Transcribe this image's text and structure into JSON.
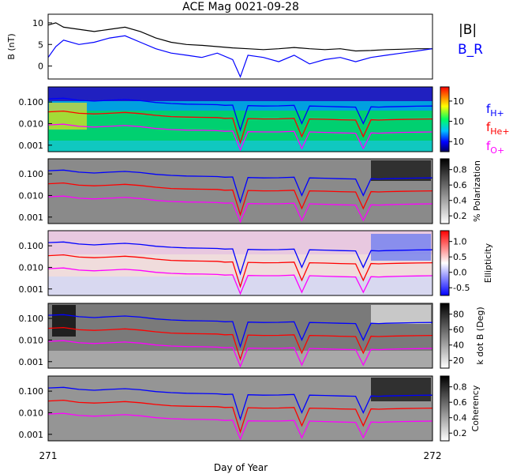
{
  "figure": {
    "title": "ACE Mag 0021-09-28",
    "xlabel": "Day of Year",
    "x_ticks": [
      "271",
      "272"
    ]
  },
  "chart_data": [
    {
      "type": "line",
      "panel": "field",
      "ylabel": "B (nT)",
      "ylim": [
        -3,
        12
      ],
      "y_ticks": [
        "10",
        "5",
        "0"
      ],
      "x_range": [
        271.0,
        272.0
      ],
      "series": [
        {
          "name": "|B|",
          "color": "#000000",
          "x": [
            271.0,
            271.02,
            271.04,
            271.08,
            271.12,
            271.16,
            271.2,
            271.24,
            271.28,
            271.32,
            271.36,
            271.4,
            271.44,
            271.48,
            271.52,
            271.56,
            271.6,
            271.64,
            271.68,
            271.72,
            271.76,
            271.8,
            271.84,
            271.88,
            271.92,
            271.96,
            272.0
          ],
          "values": [
            9.5,
            10.0,
            9.0,
            8.5,
            8.0,
            8.5,
            9.0,
            8.0,
            6.5,
            5.5,
            5.0,
            4.8,
            4.5,
            4.2,
            4.0,
            3.8,
            4.0,
            4.3,
            4.0,
            3.8,
            4.0,
            3.5,
            3.6,
            3.8,
            3.9,
            4.0,
            4.0
          ]
        },
        {
          "name": "B_R",
          "color": "#0000ff",
          "x": [
            271.0,
            271.02,
            271.04,
            271.08,
            271.12,
            271.16,
            271.2,
            271.24,
            271.28,
            271.32,
            271.36,
            271.4,
            271.44,
            271.48,
            271.5,
            271.52,
            271.56,
            271.6,
            271.64,
            271.68,
            271.72,
            271.76,
            271.8,
            271.84,
            271.88,
            271.92,
            271.96,
            272.0
          ],
          "values": [
            2.0,
            4.5,
            6.0,
            5.0,
            5.5,
            6.5,
            7.0,
            5.5,
            4.0,
            3.0,
            2.5,
            2.0,
            3.0,
            1.5,
            -2.5,
            2.5,
            2.0,
            1.0,
            2.5,
            0.5,
            1.5,
            2.0,
            1.0,
            2.0,
            2.5,
            3.0,
            3.5,
            4.0
          ]
        }
      ]
    },
    {
      "type": "heatmap",
      "panel": "power",
      "yscale": "log",
      "ylim": [
        0.0005,
        0.5
      ],
      "y_ticks": [
        "0.100",
        "0.010",
        "0.001"
      ],
      "colorbar_ticks": [
        "10",
        "10",
        "10"
      ],
      "overlay_series": [
        {
          "name": "f_H+",
          "color": "#0000ff"
        },
        {
          "name": "f_He+",
          "color": "#ff0000"
        },
        {
          "name": "f_O+",
          "color": "#ff00ff"
        }
      ]
    },
    {
      "type": "heatmap",
      "panel": "polarization",
      "yscale": "log",
      "ylim": [
        0.0005,
        0.5
      ],
      "y_ticks": [
        "0.100",
        "0.010",
        "0.001"
      ],
      "colorbar_label": "% Polarization",
      "colorbar_ticks": [
        "0.8",
        "0.6",
        "0.4",
        "0.2"
      ]
    },
    {
      "type": "heatmap",
      "panel": "ellipticity",
      "yscale": "log",
      "ylim": [
        0.0005,
        0.5
      ],
      "y_ticks": [
        "0.100",
        "0.010",
        "0.001"
      ],
      "colorbar_label": "Ellipticity",
      "colorbar_ticks": [
        "1.0",
        "0.5",
        "0.0",
        "-0.5"
      ]
    },
    {
      "type": "heatmap",
      "panel": "kdotb",
      "yscale": "log",
      "ylim": [
        0.0005,
        0.5
      ],
      "y_ticks": [
        "0.100",
        "0.010",
        "0.001"
      ],
      "colorbar_label": "k dot B (Deg)",
      "colorbar_ticks": [
        "80",
        "60",
        "40",
        "20"
      ]
    },
    {
      "type": "heatmap",
      "panel": "coherency",
      "yscale": "log",
      "ylim": [
        0.0005,
        0.5
      ],
      "y_ticks": [
        "0.100",
        "0.010",
        "0.001"
      ],
      "colorbar_label": "Coherency",
      "colorbar_ticks": [
        "0.8",
        "0.6",
        "0.4",
        "0.2"
      ]
    }
  ],
  "gyrofrequency": {
    "x": [
      271.0,
      271.04,
      271.08,
      271.12,
      271.16,
      271.2,
      271.24,
      271.28,
      271.32,
      271.36,
      271.4,
      271.44,
      271.46,
      271.48,
      271.5,
      271.52,
      271.56,
      271.6,
      271.64,
      271.66,
      271.68,
      271.72,
      271.76,
      271.8,
      271.82,
      271.84,
      271.86,
      271.88,
      271.92,
      271.96,
      272.0
    ],
    "f_H+": [
      0.14,
      0.15,
      0.12,
      0.11,
      0.12,
      0.13,
      0.115,
      0.095,
      0.085,
      0.08,
      0.078,
      0.075,
      0.07,
      0.072,
      0.005,
      0.068,
      0.065,
      0.066,
      0.07,
      0.01,
      0.065,
      0.063,
      0.06,
      0.058,
      0.01,
      0.06,
      0.058,
      0.06,
      0.062,
      0.064,
      0.065
    ],
    "f_He+": [
      0.035,
      0.038,
      0.03,
      0.028,
      0.03,
      0.033,
      0.029,
      0.024,
      0.021,
      0.02,
      0.0195,
      0.019,
      0.0175,
      0.018,
      0.0013,
      0.017,
      0.0163,
      0.0165,
      0.0175,
      0.0025,
      0.0163,
      0.0158,
      0.015,
      0.0145,
      0.0025,
      0.015,
      0.0145,
      0.015,
      0.0155,
      0.016,
      0.0163
    ],
    "f_O+": [
      0.0087,
      0.0094,
      0.0075,
      0.0069,
      0.0075,
      0.0081,
      0.0072,
      0.0059,
      0.0053,
      0.005,
      0.0049,
      0.0047,
      0.0044,
      0.0045,
      0.0006,
      0.0042,
      0.0041,
      0.0041,
      0.0044,
      0.0007,
      0.0041,
      0.0039,
      0.0037,
      0.0036,
      0.0007,
      0.0037,
      0.0036,
      0.0037,
      0.0039,
      0.004,
      0.0041
    ]
  },
  "colors": {
    "blue": "#0000ff",
    "red": "#ff0000",
    "magenta": "#ff00ff",
    "black": "#000000"
  }
}
